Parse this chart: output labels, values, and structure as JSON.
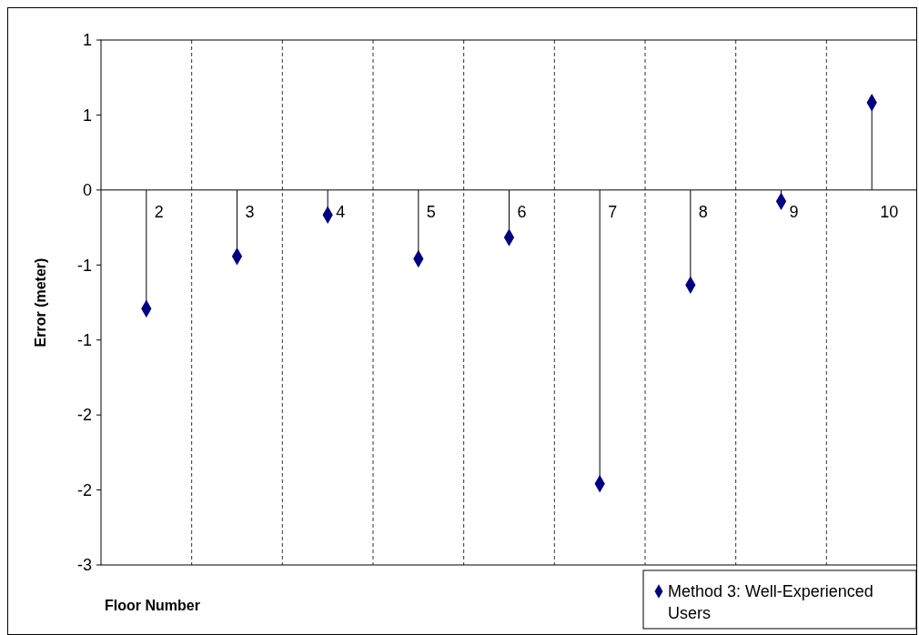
{
  "chart_data": {
    "type": "lollipop",
    "xlabel": "Floor Number",
    "ylabel": "Error (meter)",
    "categories": [
      "2",
      "3",
      "4",
      "5",
      "6",
      "7",
      "8",
      "9",
      "10"
    ],
    "series": [
      {
        "name": "Method 3: Well-Experienced Users",
        "color": "#000080",
        "values": [
          -0.95,
          -0.53,
          -0.2,
          -0.55,
          -0.38,
          -2.35,
          -0.76,
          -0.09,
          0.7
        ]
      }
    ],
    "ylim": [
      -3,
      1.2
    ],
    "yticks": [
      {
        "value": -3,
        "label": "-3"
      },
      {
        "value": -2.4,
        "label": "-2"
      },
      {
        "value": -1.8,
        "label": "-2"
      },
      {
        "value": -1.2,
        "label": "-1"
      },
      {
        "value": -0.6,
        "label": "-1"
      },
      {
        "value": 0,
        "label": "0"
      },
      {
        "value": 0.6,
        "label": "1"
      },
      {
        "value": 1.2,
        "label": "1"
      }
    ],
    "grid": "x",
    "legend": "bottom right",
    "marker": "diamond"
  }
}
